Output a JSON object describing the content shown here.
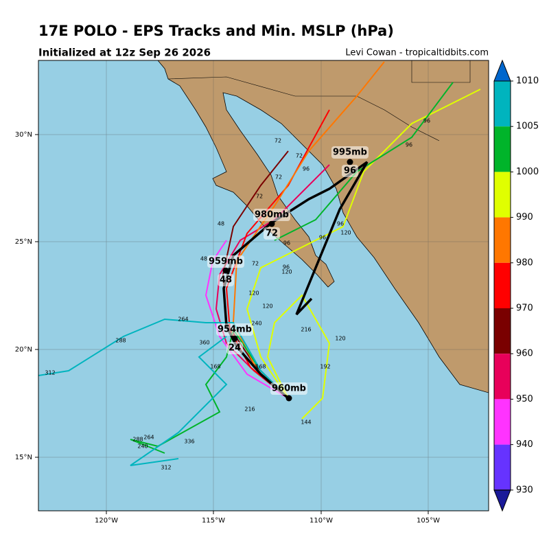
{
  "header": {
    "title": "17E POLO - EPS Tracks and Min. MSLP (hPa)",
    "subtitle": "Initialized at 12z Sep 26 2026",
    "credit": "Levi Cowan - tropicaltidbits.com"
  },
  "map": {
    "lon_ticks": [
      "120°W",
      "115°W",
      "110°W",
      "105°W"
    ],
    "lat_ticks": [
      "30°N",
      "25°N",
      "20°N",
      "15°N"
    ]
  },
  "colorbar": {
    "ticks": [
      "1010",
      "1005",
      "1000",
      "990",
      "980",
      "970",
      "960",
      "950",
      "940",
      "930"
    ],
    "colors": [
      "#00b4be",
      "#00b42a",
      "#e0ff00",
      "#ff7700",
      "#ff0000",
      "#7a0000",
      "#e8005a",
      "#ff33ff",
      "#6633ff"
    ],
    "top_color": "#0066cc",
    "bottom_color": "#1a1a99"
  },
  "mean_track": [
    {
      "pressure": "995mb",
      "hour": "96"
    },
    {
      "pressure": "980mb",
      "hour": "72"
    },
    {
      "pressure": "959mb",
      "hour": "48"
    },
    {
      "pressure": "954mb",
      "hour": "24"
    },
    {
      "pressure": "960mb"
    }
  ],
  "hour_labels": [
    "120",
    "96",
    "96",
    "96",
    "72",
    "96",
    "72",
    "72",
    "72",
    "96",
    "72",
    "48",
    "48",
    "120",
    "96",
    "120",
    "120",
    "240",
    "264",
    "288",
    "312",
    "360",
    "168",
    "192",
    "168",
    "216",
    "144",
    "216",
    "288",
    "264",
    "240",
    "336",
    "312",
    "336",
    "96",
    "120"
  ]
}
